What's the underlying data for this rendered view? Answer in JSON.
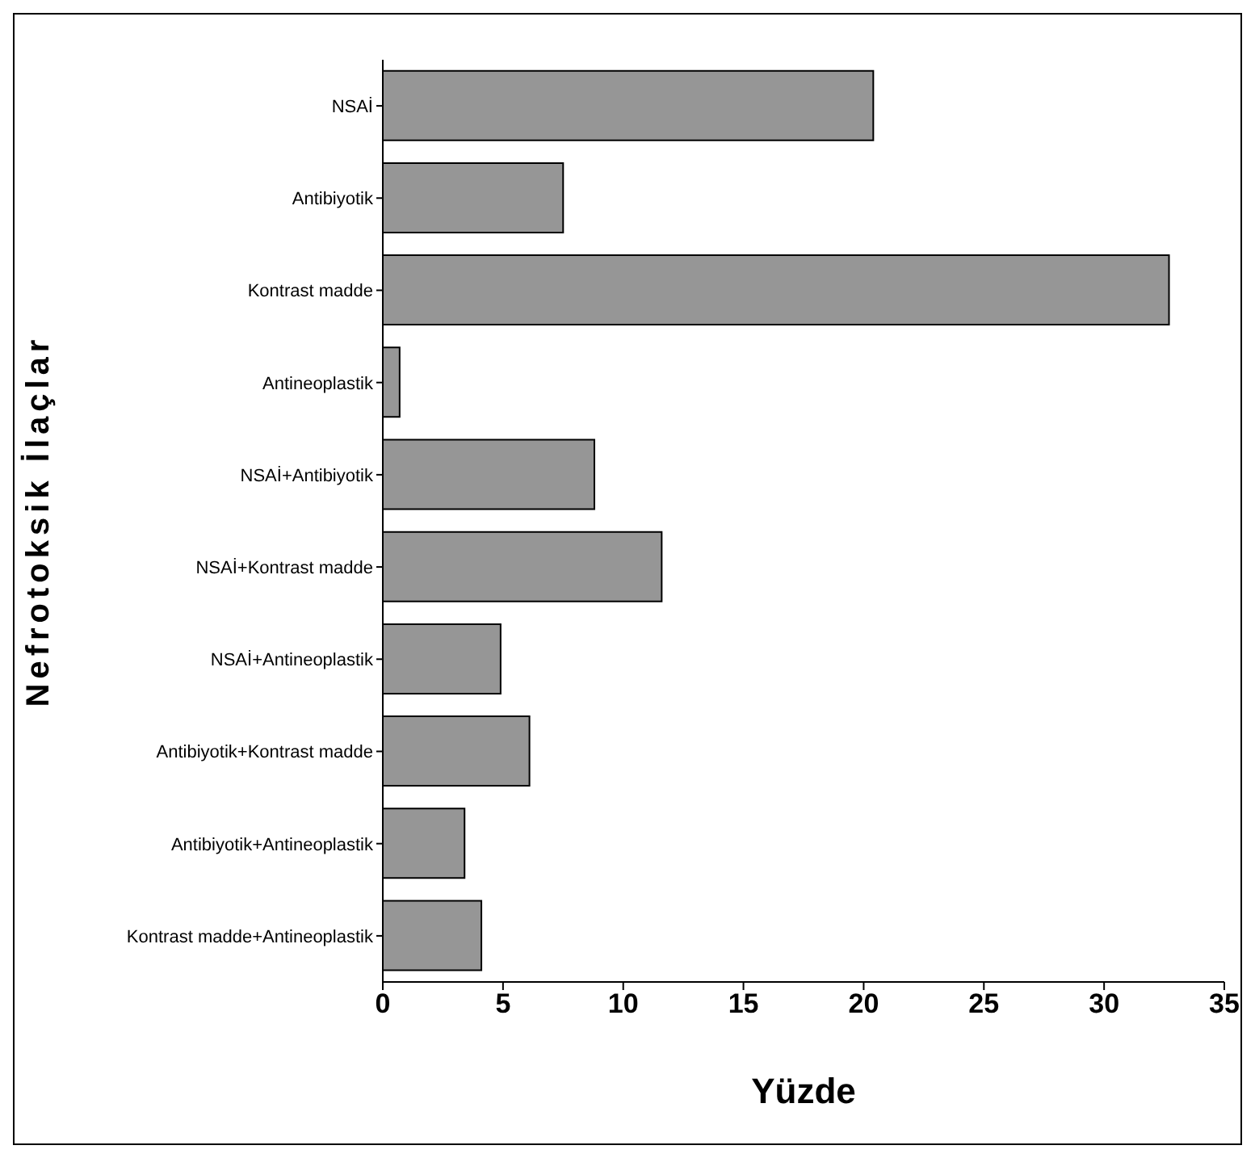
{
  "chart_data": {
    "type": "bar",
    "orientation": "horizontal",
    "xlabel": "Yüzde",
    "ylabel": "Nefrotoksik İlaçlar",
    "categories": [
      "NSAİ",
      "Antibiyotik",
      "Kontrast madde",
      "Antineoplastik",
      "NSAİ+Antibiyotik",
      "NSAİ+Kontrast madde",
      "NSAİ+Antineoplastik",
      "Antibiyotik+Kontrast madde",
      "Antibiyotik+Antineoplastik",
      "Kontrast madde+Antineoplastik"
    ],
    "values": [
      20.4,
      7.5,
      32.7,
      0.7,
      8.8,
      11.6,
      4.9,
      6.1,
      3.4,
      4.1
    ],
    "color": "#969696",
    "xlim": [
      0,
      35
    ],
    "xticks": [
      0,
      5,
      10,
      15,
      20,
      25,
      30,
      35
    ],
    "grid": false,
    "legend": false
  }
}
